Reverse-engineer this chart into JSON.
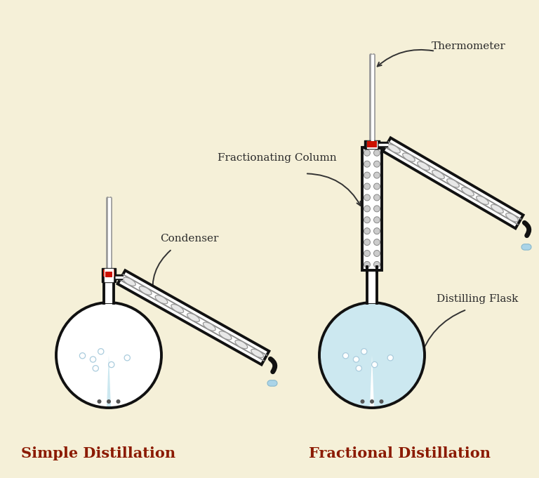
{
  "background_color": "#f5f0d8",
  "title_simple": "Simple Distillation",
  "title_fractional": "Fractional Distillation",
  "title_color": "#8b1a00",
  "title_fontsize": 15,
  "label_thermometer": "Thermometer",
  "label_fractionating": "Fractionating Column",
  "label_condenser": "Condenser",
  "label_distilling_flask": "Distilling Flask",
  "flask_fill_color": "#cce8f0",
  "flask_outline_color": "#111111",
  "thermometer_outer": "#888888",
  "thermometer_inner": "#ffffff",
  "red_band_color": "#cc1100",
  "drop_color": "#aad4e8",
  "annotation_color": "#2a2a2a",
  "annotation_fontsize": 10,
  "condenser_bg": "#ffffff",
  "condenser_coil": "#cccccc",
  "frac_col_bg": "#ffffff",
  "frac_col_ball": "#bbbbbb"
}
